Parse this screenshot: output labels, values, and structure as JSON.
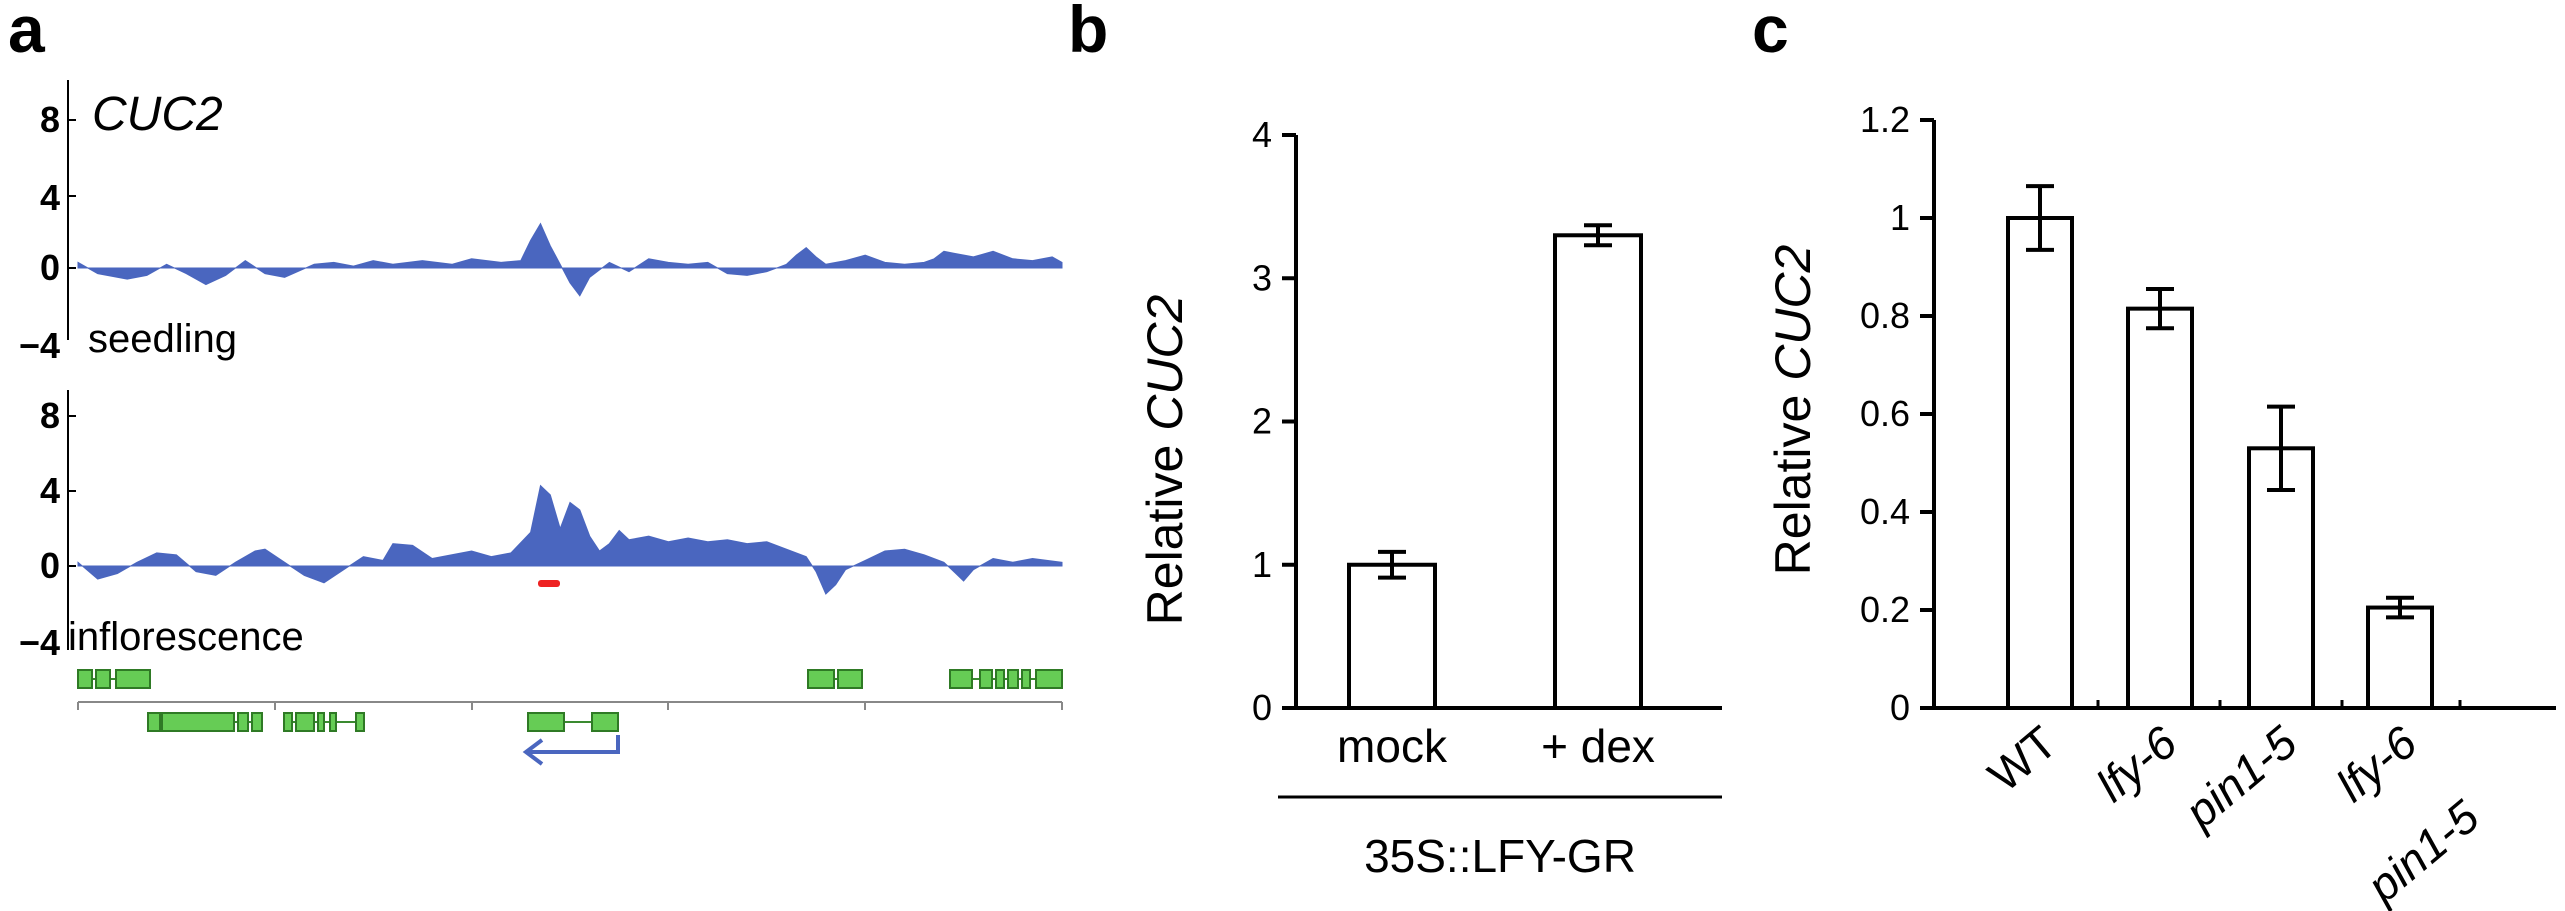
{
  "panels": {
    "a": {
      "letter": "a",
      "gene_label": "CUC2",
      "y_ticks": [
        "8",
        "4",
        "0",
        "−4"
      ],
      "tracks": [
        {
          "label": "seedling"
        },
        {
          "label": "inflorescence"
        }
      ],
      "colors": {
        "signal": "#4a66bf",
        "gene_model": "#66cc55",
        "peak_marker": "#ee2222",
        "arrow": "#4a66bf"
      }
    },
    "b": {
      "letter": "b"
    },
    "c": {
      "letter": "c"
    }
  },
  "chart_data": [
    {
      "panel": "a",
      "type": "area",
      "gene_label": "CUC2",
      "y_ticks": [
        8,
        4,
        0,
        -4
      ],
      "ylim": [
        -4,
        8
      ],
      "series": [
        {
          "name": "seedling",
          "points": [
            [
              0,
              0.3
            ],
            [
              2,
              -0.3
            ],
            [
              5,
              -0.6
            ],
            [
              7,
              -0.4
            ],
            [
              9,
              0.2
            ],
            [
              11,
              -0.3
            ],
            [
              13,
              -0.9
            ],
            [
              15,
              -0.4
            ],
            [
              17,
              0.4
            ],
            [
              19,
              -0.3
            ],
            [
              21,
              -0.5
            ],
            [
              24,
              0.2
            ],
            [
              26,
              0.3
            ],
            [
              28,
              0.1
            ],
            [
              30,
              0.4
            ],
            [
              32,
              0.2
            ],
            [
              35,
              0.4
            ],
            [
              38,
              0.2
            ],
            [
              40,
              0.5
            ],
            [
              43,
              0.3
            ],
            [
              45,
              0.4
            ],
            [
              46,
              1.5
            ],
            [
              47,
              2.4
            ],
            [
              48,
              1.2
            ],
            [
              49,
              0.2
            ],
            [
              50,
              -0.8
            ],
            [
              51,
              -1.5
            ],
            [
              52,
              -0.5
            ],
            [
              54,
              0.3
            ],
            [
              56,
              -0.2
            ],
            [
              58,
              0.5
            ],
            [
              60,
              0.3
            ],
            [
              62,
              0.2
            ],
            [
              64,
              0.3
            ],
            [
              66,
              -0.3
            ],
            [
              68,
              -0.4
            ],
            [
              70,
              -0.2
            ],
            [
              72,
              0.2
            ],
            [
              73,
              0.7
            ],
            [
              74,
              1.1
            ],
            [
              75,
              0.6
            ],
            [
              76,
              0.2
            ],
            [
              78,
              0.4
            ],
            [
              80,
              0.7
            ],
            [
              82,
              0.3
            ],
            [
              84,
              0.2
            ],
            [
              86,
              0.3
            ],
            [
              87,
              0.5
            ],
            [
              88,
              0.9
            ],
            [
              89,
              0.8
            ],
            [
              91,
              0.6
            ],
            [
              93,
              0.9
            ],
            [
              95,
              0.5
            ],
            [
              97,
              0.4
            ],
            [
              99,
              0.6
            ],
            [
              100,
              0.3
            ]
          ]
        },
        {
          "name": "inflorescence",
          "points": [
            [
              0,
              0.2
            ],
            [
              2,
              -0.7
            ],
            [
              4,
              -0.4
            ],
            [
              6,
              0.2
            ],
            [
              8,
              0.7
            ],
            [
              10,
              0.6
            ],
            [
              12,
              -0.3
            ],
            [
              14,
              -0.5
            ],
            [
              16,
              0.2
            ],
            [
              18,
              0.8
            ],
            [
              19,
              0.9
            ],
            [
              21,
              0.2
            ],
            [
              23,
              -0.5
            ],
            [
              25,
              -0.9
            ],
            [
              27,
              -0.2
            ],
            [
              29,
              0.5
            ],
            [
              31,
              0.3
            ],
            [
              32,
              1.2
            ],
            [
              34,
              1.1
            ],
            [
              36,
              0.4
            ],
            [
              38,
              0.6
            ],
            [
              40,
              0.8
            ],
            [
              42,
              0.5
            ],
            [
              44,
              0.7
            ],
            [
              46,
              1.8
            ],
            [
              47,
              4.3
            ],
            [
              48,
              3.8
            ],
            [
              49,
              2.0
            ],
            [
              50,
              3.4
            ],
            [
              51,
              3.0
            ],
            [
              52,
              1.6
            ],
            [
              53,
              0.8
            ],
            [
              54,
              1.2
            ],
            [
              55,
              1.9
            ],
            [
              56,
              1.4
            ],
            [
              58,
              1.6
            ],
            [
              60,
              1.3
            ],
            [
              62,
              1.5
            ],
            [
              64,
              1.3
            ],
            [
              66,
              1.4
            ],
            [
              68,
              1.2
            ],
            [
              70,
              1.3
            ],
            [
              72,
              0.9
            ],
            [
              74,
              0.5
            ],
            [
              75,
              -0.3
            ],
            [
              76,
              -1.5
            ],
            [
              77,
              -1.0
            ],
            [
              78,
              -0.2
            ],
            [
              80,
              0.3
            ],
            [
              82,
              0.8
            ],
            [
              84,
              0.9
            ],
            [
              86,
              0.6
            ],
            [
              88,
              0.2
            ],
            [
              89,
              -0.3
            ],
            [
              90,
              -0.8
            ],
            [
              91,
              -0.2
            ],
            [
              93,
              0.4
            ],
            [
              95,
              0.2
            ],
            [
              97,
              0.4
            ],
            [
              100,
              0.2
            ]
          ]
        }
      ]
    },
    {
      "panel": "b",
      "type": "bar",
      "categories": [
        "mock",
        "+ dex"
      ],
      "values": [
        1.0,
        3.3
      ],
      "errors": [
        0.09,
        0.07
      ],
      "ylim": [
        0,
        4
      ],
      "y_ticks": [
        0,
        1,
        2,
        3,
        4
      ],
      "ylabel_prefix": "Relative",
      "ylabel_gene": "CUC2",
      "group_label": "35S::LFY-GR"
    },
    {
      "panel": "c",
      "type": "bar",
      "categories": [
        "WT",
        "lfy-6",
        "pin1-5",
        "lfy-6 pin1-5"
      ],
      "category_lines": [
        [
          "WT"
        ],
        [
          "lfy-6"
        ],
        [
          "pin1-5"
        ],
        [
          "lfy-6",
          "pin1-5"
        ]
      ],
      "category_italic": [
        false,
        true,
        true,
        true
      ],
      "values": [
        1.0,
        0.815,
        0.53,
        0.205
      ],
      "errors": [
        0.065,
        0.04,
        0.085,
        0.02
      ],
      "ylim": [
        0,
        1.2
      ],
      "y_ticks": [
        "0",
        "0.2",
        "0.4",
        "0.6",
        "0.8",
        "1",
        "1.2"
      ],
      "ylabel_prefix": "Relative",
      "ylabel_gene": "CUC2"
    }
  ]
}
